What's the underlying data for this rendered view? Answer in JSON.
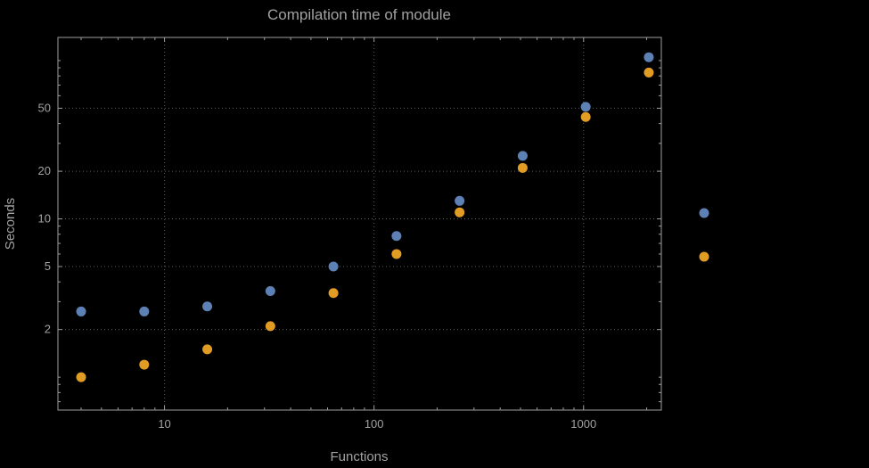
{
  "colors": {
    "background": "#000000",
    "frame": "#9e9e9e",
    "grid": "#5f5f5f",
    "text": "#a2a2a2",
    "series_blue": "#5E81B5",
    "series_orange": "#E19C24"
  },
  "legend": {
    "position": "right-outside",
    "items": [
      {
        "series": "blue",
        "marker_color": "#5E81B5",
        "label": ""
      },
      {
        "series": "orange",
        "marker_color": "#E19C24",
        "label": ""
      }
    ]
  },
  "chart_data": {
    "type": "scatter",
    "title": "Compilation time of module",
    "xlabel": "Functions",
    "ylabel": "Seconds",
    "xscale": "log",
    "yscale": "log",
    "xlim": [
      3.1,
      2350
    ],
    "ylim": [
      0.62,
      140
    ],
    "grid": "dotted lines at labeled major ticks",
    "legend_position": "right",
    "xticks": [
      {
        "value": 10,
        "label": "10"
      },
      {
        "value": 100,
        "label": "100"
      },
      {
        "value": 1000,
        "label": "1000"
      }
    ],
    "yticks": [
      {
        "value": 2,
        "label": "2"
      },
      {
        "value": 5,
        "label": "5"
      },
      {
        "value": 10,
        "label": "10"
      },
      {
        "value": 20,
        "label": "20"
      },
      {
        "value": 50,
        "label": "50"
      }
    ],
    "x": [
      4,
      8,
      16,
      32,
      64,
      128,
      256,
      512,
      1024,
      2048
    ],
    "series": [
      {
        "name": "blue",
        "color": "#5E81B5",
        "values": [
          2.6,
          2.6,
          2.8,
          3.5,
          5.0,
          7.8,
          13,
          25,
          51,
          105
        ]
      },
      {
        "name": "orange",
        "color": "#E19C24",
        "values": [
          1.0,
          1.2,
          1.5,
          2.1,
          3.4,
          6.0,
          11,
          21,
          44,
          84
        ]
      }
    ]
  }
}
